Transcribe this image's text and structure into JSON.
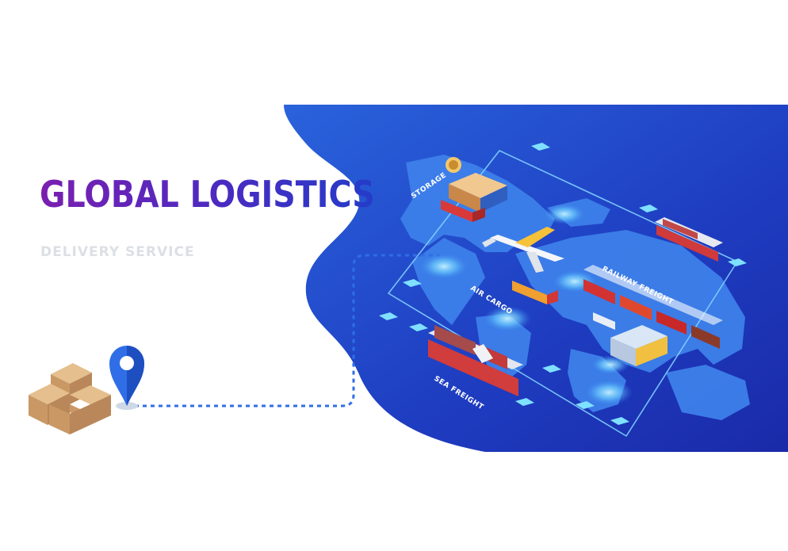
{
  "heading": {
    "title": "GLOBAL LOGISTICS",
    "subtitle": "DELIVERY SERVICE"
  },
  "labels": {
    "storage": "STORAGE",
    "air_cargo": "AIR CARGO",
    "railway_freight": "RAILWAY FREIGHT",
    "sea_freight": "SEA FREIGHT"
  },
  "colors": {
    "background_blue": "#1f3fc4",
    "map_blue": "#3c7be6",
    "route_line": "#7fd0ff",
    "pin": "#2f6ee6",
    "title_start": "#7a1fb0",
    "title_end": "#243cc8"
  },
  "icons": [
    "boxes-icon",
    "location-pin-icon",
    "airplane-icon",
    "ship-icon",
    "train-icon",
    "truck-icon",
    "warehouse-icon",
    "factory-icon"
  ]
}
